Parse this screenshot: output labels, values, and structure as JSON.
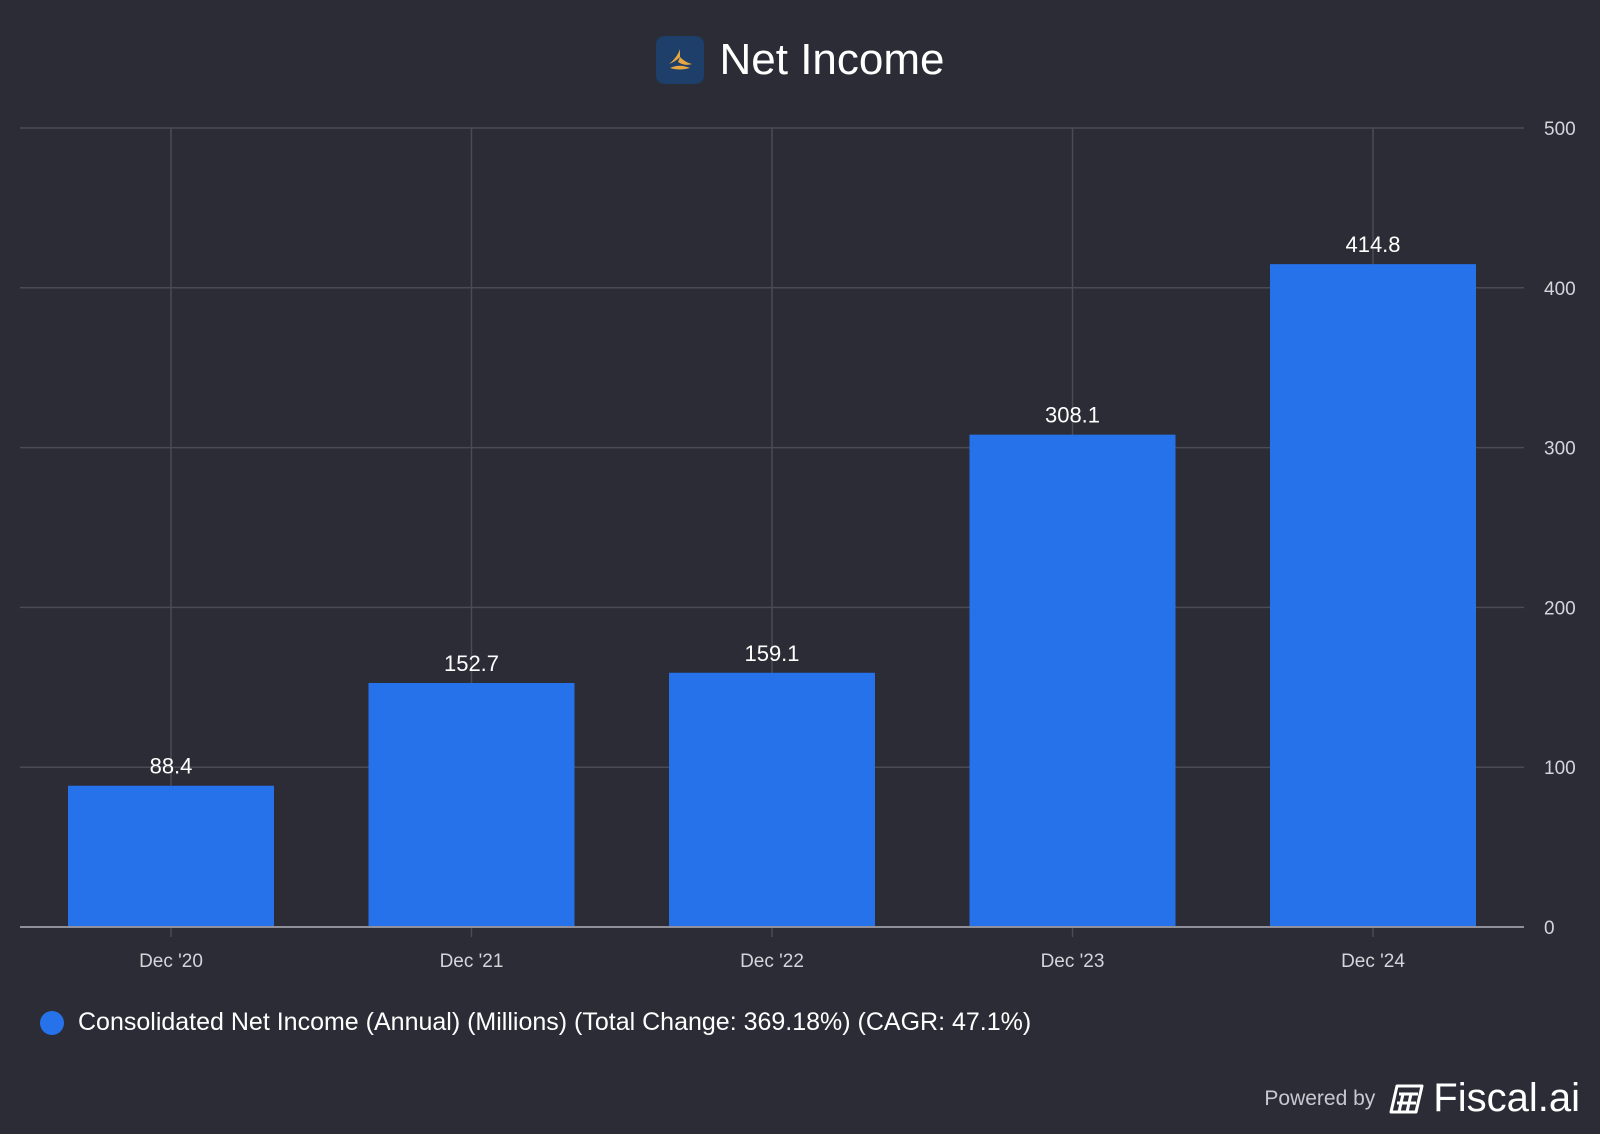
{
  "header": {
    "title": "Net Income"
  },
  "chart_data": {
    "type": "bar",
    "title": "Net Income",
    "categories": [
      "Dec '20",
      "Dec '21",
      "Dec '22",
      "Dec '23",
      "Dec '24"
    ],
    "series": [
      {
        "name": "Consolidated Net Income (Annual) (Millions) (Total Change: 369.18%) (CAGR: 47.1%)",
        "values": [
          88.4,
          152.7,
          159.1,
          308.1,
          414.8
        ]
      }
    ],
    "data_labels": [
      "88.4",
      "152.7",
      "159.1",
      "308.1",
      "414.8"
    ],
    "yticks": [
      0,
      100,
      200,
      300,
      400,
      500
    ],
    "ylim": [
      0,
      500
    ],
    "y_axis_side": "right",
    "grid": true,
    "legend_position": "bottom-left",
    "colors": {
      "bar": "#2672eb",
      "grid": "#4a4b55",
      "axis": "#8f9099",
      "background": "#2b2c35"
    }
  },
  "legend": {
    "label": "Consolidated Net Income (Annual) (Millions) (Total Change: 369.18%) (CAGR: 47.1%)",
    "color": "#2672eb"
  },
  "footer": {
    "powered_by": "Powered by",
    "brand": "Fiscal.ai"
  }
}
